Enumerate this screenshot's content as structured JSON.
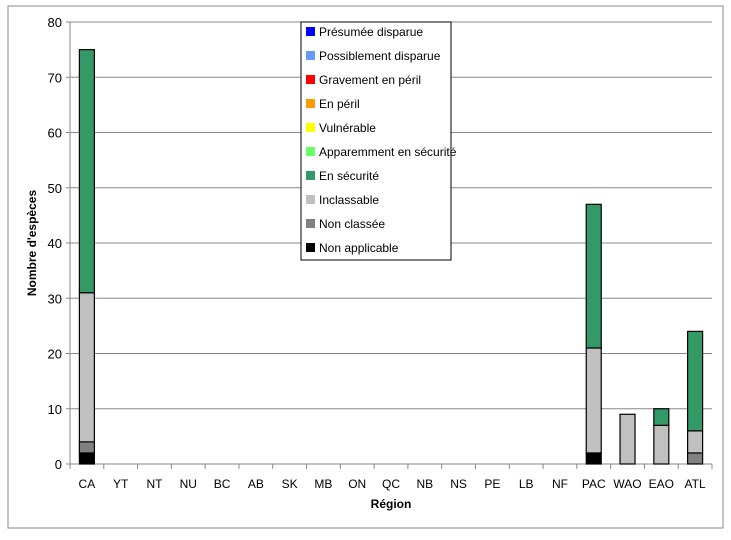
{
  "chart_data": {
    "type": "bar",
    "stacked": true,
    "title": "",
    "xlabel": "Région",
    "ylabel": "Nombre d'espèces",
    "ylim": [
      0,
      80
    ],
    "yticks": [
      0,
      10,
      20,
      30,
      40,
      50,
      60,
      70,
      80
    ],
    "grid": true,
    "legend_placement": "top-center",
    "categories": [
      "CA",
      "YT",
      "NT",
      "NU",
      "BC",
      "AB",
      "SK",
      "MB",
      "ON",
      "QC",
      "NB",
      "NS",
      "PE",
      "LB",
      "NF",
      "PAC",
      "WAO",
      "EAO",
      "ATL"
    ],
    "series": [
      {
        "name": "Non applicable",
        "color": "#000000",
        "values": [
          2,
          0,
          0,
          0,
          0,
          0,
          0,
          0,
          0,
          0,
          0,
          0,
          0,
          0,
          0,
          2,
          0,
          0,
          0
        ]
      },
      {
        "name": "Non classée",
        "color": "#808080",
        "values": [
          2,
          0,
          0,
          0,
          0,
          0,
          0,
          0,
          0,
          0,
          0,
          0,
          0,
          0,
          0,
          0,
          0,
          0,
          2
        ]
      },
      {
        "name": "Inclassable",
        "color": "#c0c0c0",
        "values": [
          27,
          0,
          0,
          0,
          0,
          0,
          0,
          0,
          0,
          0,
          0,
          0,
          0,
          0,
          0,
          19,
          9,
          7,
          4
        ]
      },
      {
        "name": "En sécurité",
        "color": "#339966",
        "values": [
          44,
          0,
          0,
          0,
          0,
          0,
          0,
          0,
          0,
          0,
          0,
          0,
          0,
          0,
          0,
          26,
          0,
          3,
          18
        ]
      },
      {
        "name": "Apparemment en sécurité",
        "color": "#66ff66",
        "values": [
          0,
          0,
          0,
          0,
          0,
          0,
          0,
          0,
          0,
          0,
          0,
          0,
          0,
          0,
          0,
          0,
          0,
          0,
          0
        ]
      },
      {
        "name": "Vulnérable",
        "color": "#ffff00",
        "values": [
          0,
          0,
          0,
          0,
          0,
          0,
          0,
          0,
          0,
          0,
          0,
          0,
          0,
          0,
          0,
          0,
          0,
          0,
          0
        ]
      },
      {
        "name": "En péril",
        "color": "#ff9900",
        "values": [
          0,
          0,
          0,
          0,
          0,
          0,
          0,
          0,
          0,
          0,
          0,
          0,
          0,
          0,
          0,
          0,
          0,
          0,
          0
        ]
      },
      {
        "name": "Gravement en péril",
        "color": "#ff0000",
        "values": [
          0,
          0,
          0,
          0,
          0,
          0,
          0,
          0,
          0,
          0,
          0,
          0,
          0,
          0,
          0,
          0,
          0,
          0,
          0
        ]
      },
      {
        "name": "Possiblement disparue",
        "color": "#6699ff",
        "values": [
          0,
          0,
          0,
          0,
          0,
          0,
          0,
          0,
          0,
          0,
          0,
          0,
          0,
          0,
          0,
          0,
          0,
          0,
          0
        ]
      },
      {
        "name": "Présumée disparue",
        "color": "#0000ff",
        "values": [
          0,
          0,
          0,
          0,
          0,
          0,
          0,
          0,
          0,
          0,
          0,
          0,
          0,
          0,
          0,
          0,
          0,
          0,
          0
        ]
      }
    ]
  }
}
